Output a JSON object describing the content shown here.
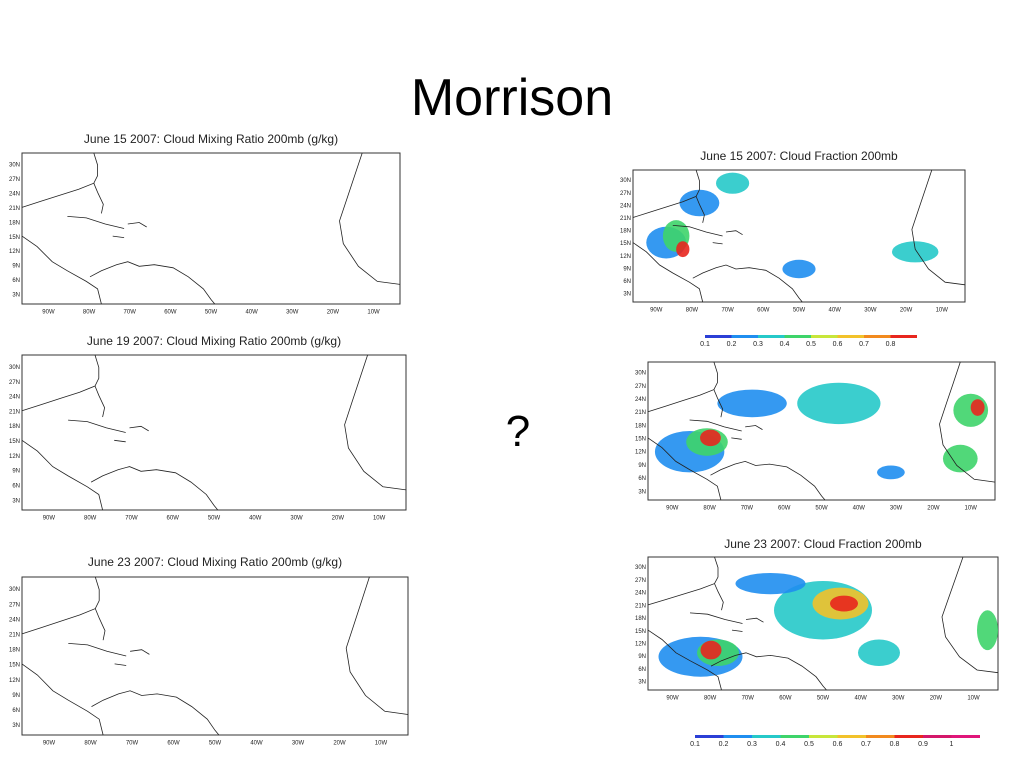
{
  "title": "Morrison",
  "question": "?",
  "lat_labels": [
    "30N",
    "27N",
    "24N",
    "21N",
    "18N",
    "15N",
    "12N",
    "9N",
    "6N",
    "3N"
  ],
  "lon_labels": [
    "90W",
    "80W",
    "70W",
    "60W",
    "50W",
    "40W",
    "30W",
    "20W",
    "10W"
  ],
  "left_panels": [
    {
      "title": "June 15 2007: Cloud Mixing Ratio 200mb (g/kg)"
    },
    {
      "title": "June 19 2007: Cloud Mixing Ratio 200mb (g/kg)"
    },
    {
      "title": "June 23 2007: Cloud Mixing Ratio 200mb (g/kg)"
    }
  ],
  "right_panels": [
    {
      "title": "June 15 2007: Cloud Fraction 200mb",
      "colorbar": [
        "0.1",
        "0.2",
        "0.3",
        "0.4",
        "0.5",
        "0.6",
        "0.7",
        "0.8"
      ]
    },
    {},
    {
      "title": "June 23 2007: Cloud Fraction 200mb",
      "colorbar": [
        "0.1",
        "0.2",
        "0.3",
        "0.4",
        "0.5",
        "0.6",
        "0.7",
        "0.8",
        "0.9",
        "1"
      ]
    }
  ]
}
